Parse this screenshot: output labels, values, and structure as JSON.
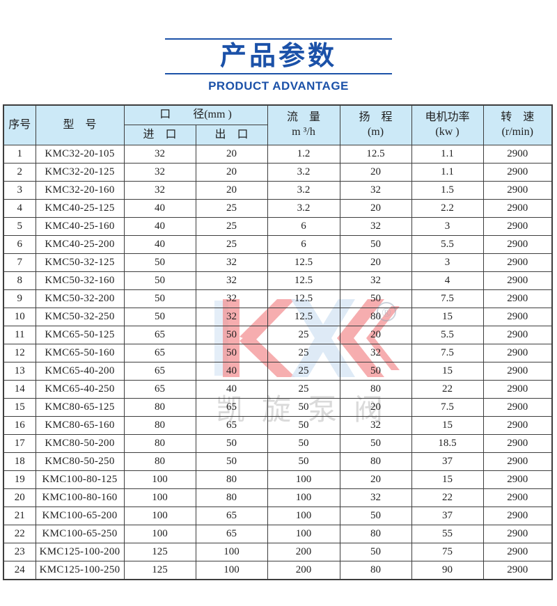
{
  "title": {
    "text": "产品参数",
    "subtitle": "PRODUCT ADVANTAGE",
    "accent_color": "#1b51a8"
  },
  "watermark": {
    "brand": "KX",
    "registered_mark": "®",
    "text": "凯旋泵阀",
    "red": "#e8393c",
    "blue": "#b8d2ec"
  },
  "table": {
    "header": {
      "serial": "序号",
      "model": "型　号",
      "diameter_group": "口　　径(mm )",
      "inlet": "进　口",
      "outlet": "出　口",
      "flow_line1": "流　量",
      "flow_line2": "m ³/h",
      "head_line1": "扬　程",
      "head_line2": "(m)",
      "power_line1": "电机功率",
      "power_line2": "(kw )",
      "speed_line1": "转　速",
      "speed_line2": "(r/min)"
    },
    "rows": [
      {
        "no": "1",
        "model": "KMC32-20-105",
        "inlet": "32",
        "outlet": "20",
        "flow": "1.2",
        "head": "12.5",
        "power": "1.1",
        "speed": "2900"
      },
      {
        "no": "2",
        "model": "KMC32-20-125",
        "inlet": "32",
        "outlet": "20",
        "flow": "3.2",
        "head": "20",
        "power": "1.1",
        "speed": "2900"
      },
      {
        "no": "3",
        "model": "KMC32-20-160",
        "inlet": "32",
        "outlet": "20",
        "flow": "3.2",
        "head": "32",
        "power": "1.5",
        "speed": "2900"
      },
      {
        "no": "4",
        "model": "KMC40-25-125",
        "inlet": "40",
        "outlet": "25",
        "flow": "3.2",
        "head": "20",
        "power": "2.2",
        "speed": "2900"
      },
      {
        "no": "5",
        "model": "KMC40-25-160",
        "inlet": "40",
        "outlet": "25",
        "flow": "6",
        "head": "32",
        "power": "3",
        "speed": "2900"
      },
      {
        "no": "6",
        "model": "KMC40-25-200",
        "inlet": "40",
        "outlet": "25",
        "flow": "6",
        "head": "50",
        "power": "5.5",
        "speed": "2900"
      },
      {
        "no": "7",
        "model": "KMC50-32-125",
        "inlet": "50",
        "outlet": "32",
        "flow": "12.5",
        "head": "20",
        "power": "3",
        "speed": "2900"
      },
      {
        "no": "8",
        "model": "KMC50-32-160",
        "inlet": "50",
        "outlet": "32",
        "flow": "12.5",
        "head": "32",
        "power": "4",
        "speed": "2900"
      },
      {
        "no": "9",
        "model": "KMC50-32-200",
        "inlet": "50",
        "outlet": "32",
        "flow": "12.5",
        "head": "50",
        "power": "7.5",
        "speed": "2900"
      },
      {
        "no": "10",
        "model": "KMC50-32-250",
        "inlet": "50",
        "outlet": "32",
        "flow": "12.5",
        "head": "80",
        "power": "15",
        "speed": "2900"
      },
      {
        "no": "11",
        "model": "KMC65-50-125",
        "inlet": "65",
        "outlet": "50",
        "flow": "25",
        "head": "20",
        "power": "5.5",
        "speed": "2900"
      },
      {
        "no": "12",
        "model": "KMC65-50-160",
        "inlet": "65",
        "outlet": "50",
        "flow": "25",
        "head": "32",
        "power": "7.5",
        "speed": "2900"
      },
      {
        "no": "13",
        "model": "KMC65-40-200",
        "inlet": "65",
        "outlet": "40",
        "flow": "25",
        "head": "50",
        "power": "15",
        "speed": "2900"
      },
      {
        "no": "14",
        "model": "KMC65-40-250",
        "inlet": "65",
        "outlet": "40",
        "flow": "25",
        "head": "80",
        "power": "22",
        "speed": "2900"
      },
      {
        "no": "15",
        "model": "KMC80-65-125",
        "inlet": "80",
        "outlet": "65",
        "flow": "50",
        "head": "20",
        "power": "7.5",
        "speed": "2900"
      },
      {
        "no": "16",
        "model": "KMC80-65-160",
        "inlet": "80",
        "outlet": "65",
        "flow": "50",
        "head": "32",
        "power": "15",
        "speed": "2900"
      },
      {
        "no": "17",
        "model": "KMC80-50-200",
        "inlet": "80",
        "outlet": "50",
        "flow": "50",
        "head": "50",
        "power": "18.5",
        "speed": "2900"
      },
      {
        "no": "18",
        "model": "KMC80-50-250",
        "inlet": "80",
        "outlet": "50",
        "flow": "50",
        "head": "80",
        "power": "37",
        "speed": "2900"
      },
      {
        "no": "19",
        "model": "KMC100-80-125",
        "inlet": "100",
        "outlet": "80",
        "flow": "100",
        "head": "20",
        "power": "15",
        "speed": "2900"
      },
      {
        "no": "20",
        "model": "KMC100-80-160",
        "inlet": "100",
        "outlet": "80",
        "flow": "100",
        "head": "32",
        "power": "22",
        "speed": "2900"
      },
      {
        "no": "21",
        "model": "KMC100-65-200",
        "inlet": "100",
        "outlet": "65",
        "flow": "100",
        "head": "50",
        "power": "37",
        "speed": "2900"
      },
      {
        "no": "22",
        "model": "KMC100-65-250",
        "inlet": "100",
        "outlet": "65",
        "flow": "100",
        "head": "80",
        "power": "55",
        "speed": "2900"
      },
      {
        "no": "23",
        "model": "KMC125-100-200",
        "inlet": "125",
        "outlet": "100",
        "flow": "200",
        "head": "50",
        "power": "75",
        "speed": "2900"
      },
      {
        "no": "24",
        "model": "KMC125-100-250",
        "inlet": "125",
        "outlet": "100",
        "flow": "200",
        "head": "80",
        "power": "90",
        "speed": "2900"
      }
    ]
  }
}
